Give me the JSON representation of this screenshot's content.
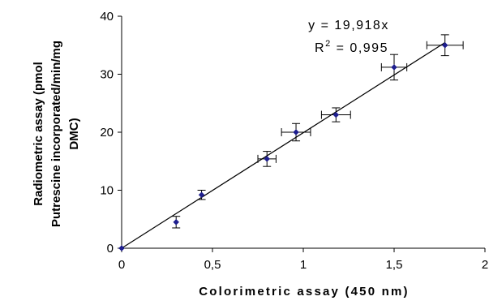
{
  "chart_data": {
    "type": "scatter",
    "title": "",
    "xlabel": "Colorimetric assay (450 nm)",
    "ylabel_lines": [
      "Radiometric assay (pmol",
      "Putrescine incorporated/min/mg",
      "DMC)"
    ],
    "xlim": [
      0,
      2
    ],
    "ylim": [
      0,
      40
    ],
    "x_ticks": [
      0,
      0.5,
      1,
      1.5,
      2
    ],
    "x_tick_labels": [
      "0",
      "0,5",
      "1",
      "1,5",
      "2"
    ],
    "y_ticks": [
      0,
      10,
      20,
      30,
      40
    ],
    "y_tick_labels": [
      "0",
      "10",
      "20",
      "30",
      "40"
    ],
    "grid": false,
    "legend": "none",
    "series": [
      {
        "marker": "diamond",
        "color": "#1f1f8f",
        "points": [
          {
            "x": 0.0,
            "y": 0.0,
            "xerr": 0.0,
            "yerr": 0.0
          },
          {
            "x": 0.3,
            "y": 4.5,
            "xerr": 0.0,
            "yerr": 1.0
          },
          {
            "x": 0.44,
            "y": 9.2,
            "xerr": 0.0,
            "yerr": 0.8
          },
          {
            "x": 0.8,
            "y": 15.4,
            "xerr": 0.05,
            "yerr": 1.3
          },
          {
            "x": 0.96,
            "y": 20.0,
            "xerr": 0.08,
            "yerr": 1.5
          },
          {
            "x": 1.18,
            "y": 23.0,
            "xerr": 0.08,
            "yerr": 1.2
          },
          {
            "x": 1.5,
            "y": 31.2,
            "xerr": 0.07,
            "yerr": 2.2
          },
          {
            "x": 1.78,
            "y": 35.0,
            "xerr": 0.1,
            "yerr": 1.8
          }
        ]
      }
    ],
    "trendline": {
      "slope": 19.918,
      "intercept": 0,
      "x_range": [
        0,
        1.78
      ]
    },
    "annotations": {
      "equation": "y = 19,918x",
      "r2_prefix": "R",
      "r2_sup": "2",
      "r2_suffix": " = 0,995"
    }
  }
}
